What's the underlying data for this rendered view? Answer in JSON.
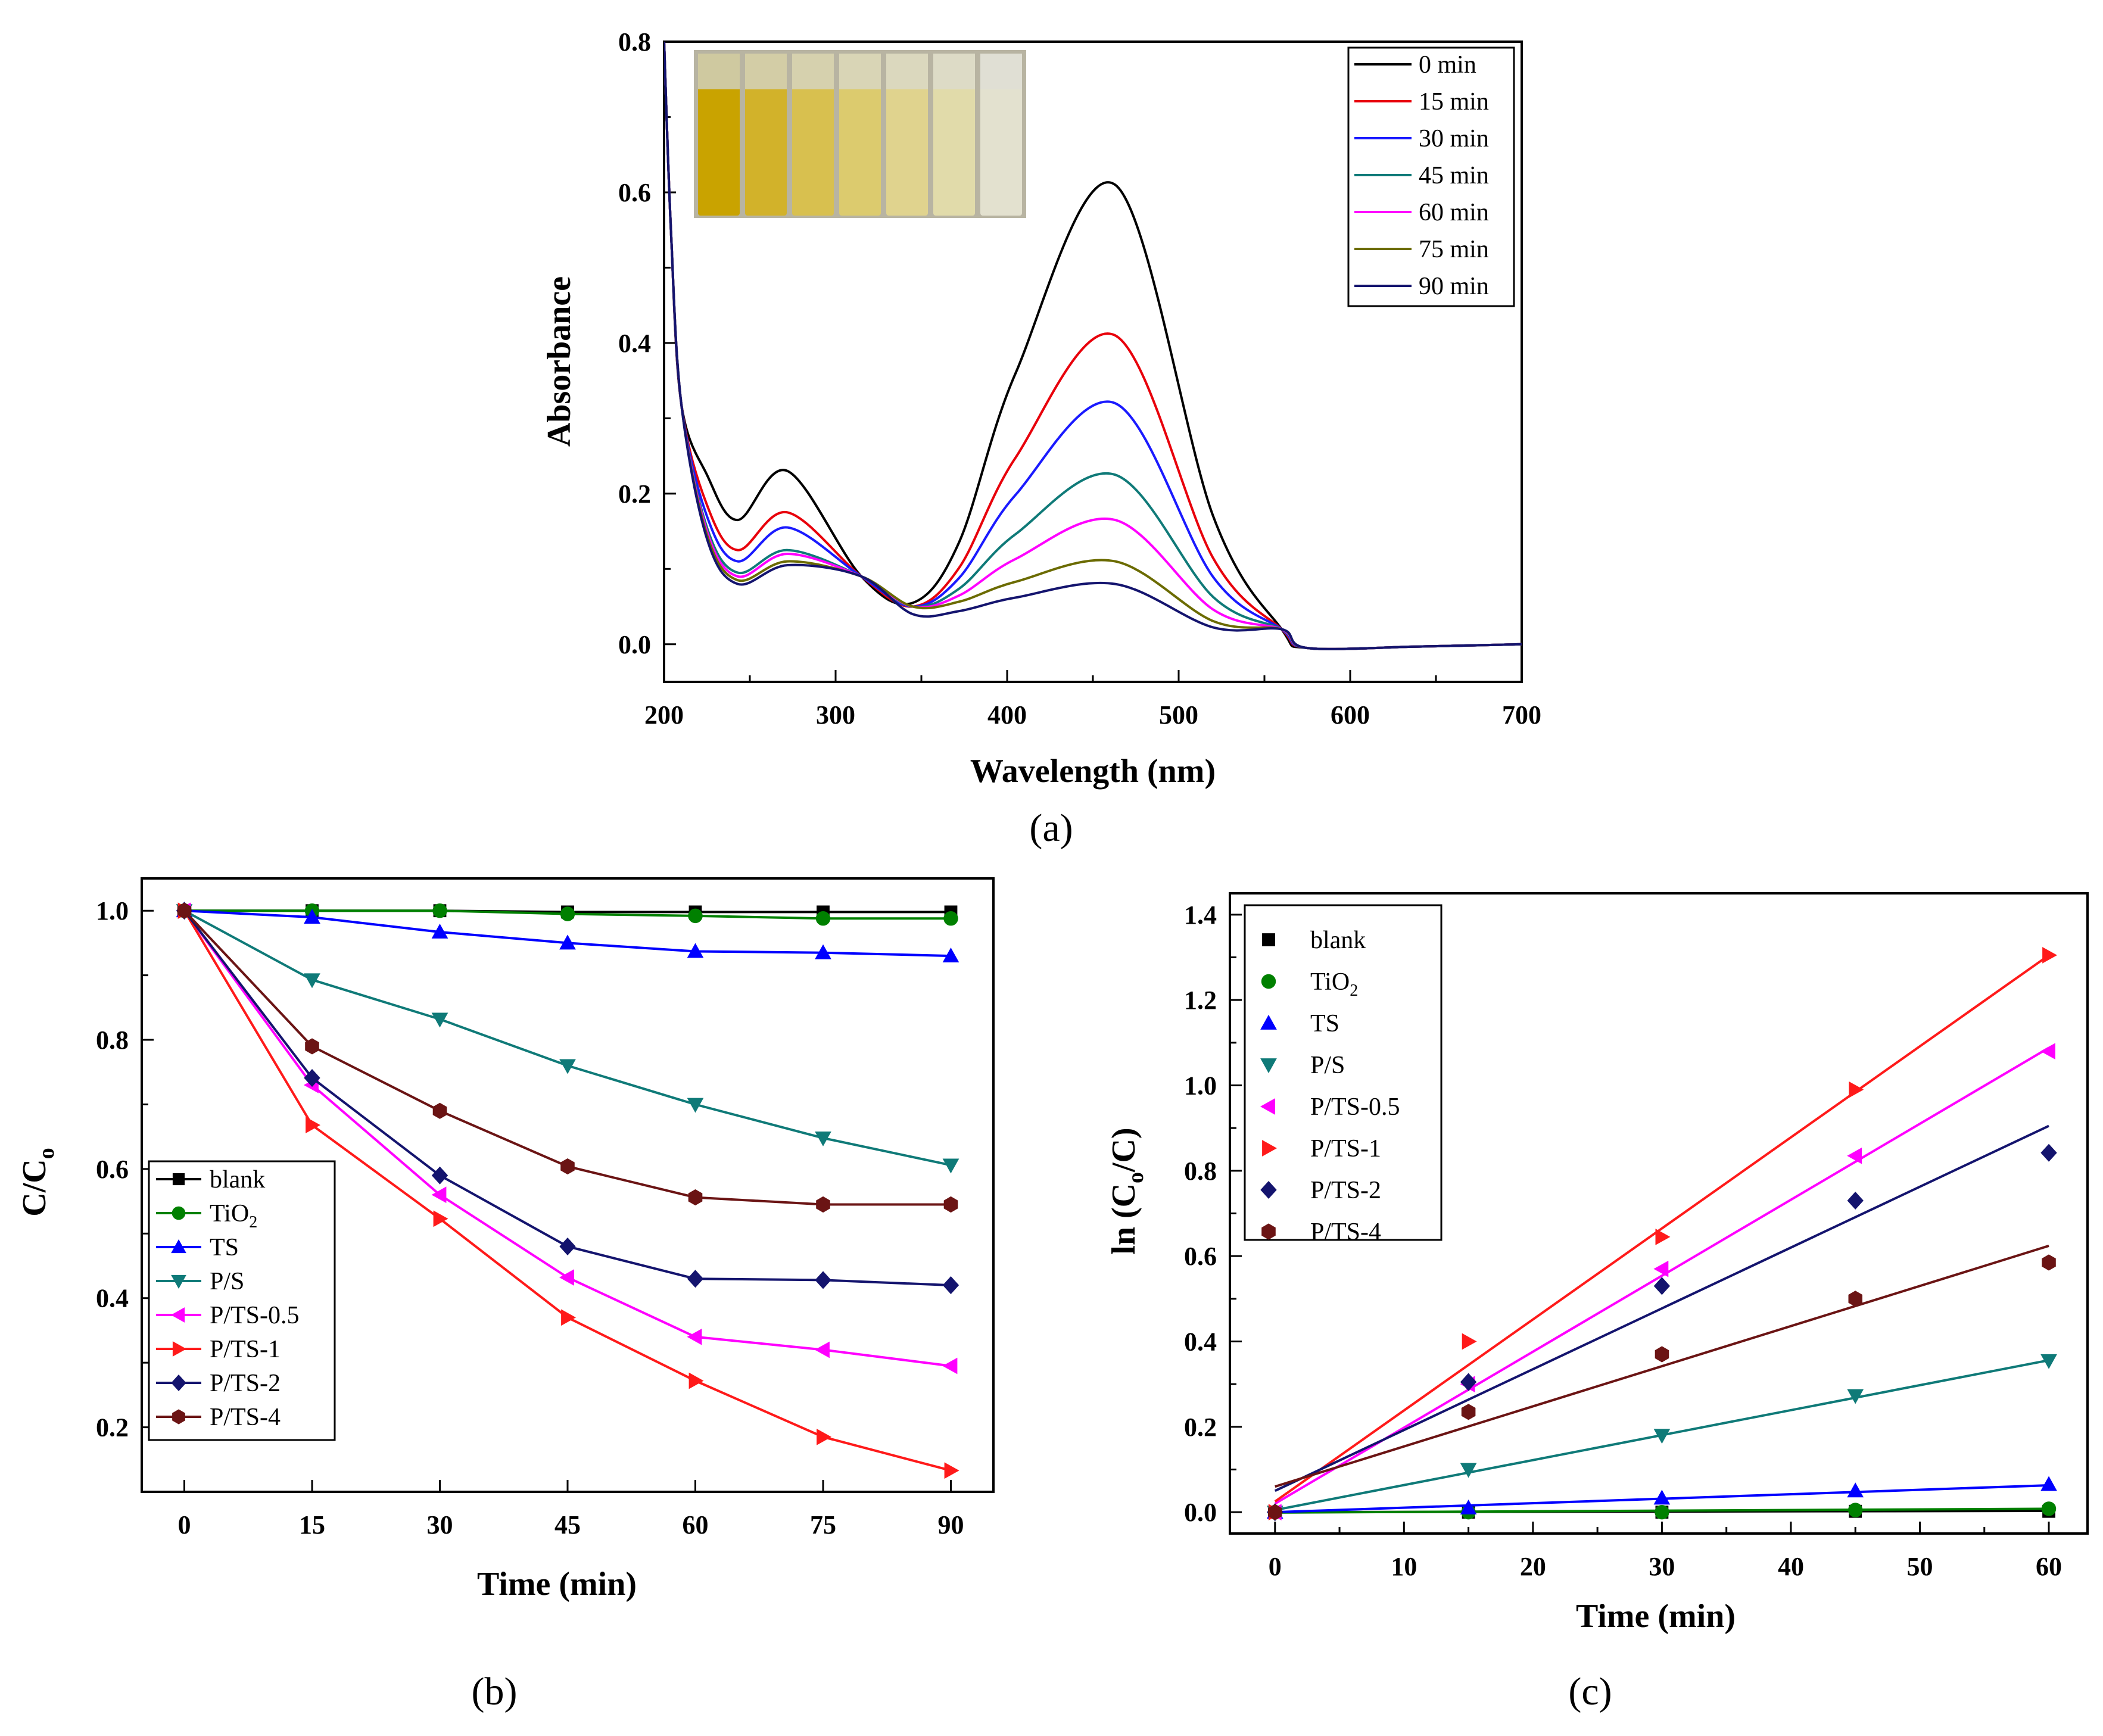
{
  "chart_data": [
    {
      "id": "a",
      "type": "line",
      "panel_label": "(a)",
      "xlabel": "Wavelength (nm)",
      "ylabel": "Absorbance",
      "xlim": [
        200,
        700
      ],
      "ylim": [
        -0.05,
        0.8
      ],
      "xticks": [
        200,
        300,
        400,
        500,
        600,
        700
      ],
      "yticks": [
        0.0,
        0.2,
        0.4,
        0.6,
        0.8
      ],
      "legend_position": "top-right",
      "inset": "photo of seven cuvettes fading from yellow to colourless",
      "series": [
        {
          "name": "0 min",
          "color": "#000000",
          "valley1": 0.165,
          "peak1": 0.23,
          "valley2": 0.055,
          "peak2": 0.61
        },
        {
          "name": "15 min",
          "color": "#e8000b",
          "valley1": 0.125,
          "peak1": 0.175,
          "valley2": 0.05,
          "peak2": 0.41
        },
        {
          "name": "30 min",
          "color": "#1a1aff",
          "valley1": 0.11,
          "peak1": 0.155,
          "valley2": 0.05,
          "peak2": 0.32
        },
        {
          "name": "45 min",
          "color": "#0f7a78",
          "valley1": 0.095,
          "peak1": 0.125,
          "valley2": 0.05,
          "peak2": 0.225
        },
        {
          "name": "60 min",
          "color": "#ff00ff",
          "valley1": 0.09,
          "peak1": 0.12,
          "valley2": 0.05,
          "peak2": 0.165
        },
        {
          "name": "75 min",
          "color": "#6b6b00",
          "valley1": 0.085,
          "peak1": 0.11,
          "valley2": 0.05,
          "peak2": 0.11
        },
        {
          "name": "90 min",
          "color": "#14146e",
          "valley1": 0.08,
          "peak1": 0.105,
          "valley2": 0.04,
          "peak2": 0.08
        }
      ]
    },
    {
      "id": "b",
      "type": "line",
      "panel_label": "(b)",
      "xlabel": "Time (min)",
      "ylabel": "C/C",
      "ylabel_sub": "o",
      "xlim": [
        -5,
        95
      ],
      "ylim": [
        0.1,
        1.05
      ],
      "xticks": [
        0,
        15,
        30,
        45,
        60,
        75,
        90
      ],
      "yticks": [
        0.2,
        0.4,
        0.6,
        0.8,
        1.0
      ],
      "legend_position": "bottom-left",
      "x": [
        0,
        15,
        30,
        45,
        60,
        75,
        90
      ],
      "series": [
        {
          "name": "blank",
          "sub": "",
          "color": "#000000",
          "marker": "square",
          "values": [
            1.0,
            1.0,
            1.0,
            0.998,
            0.998,
            0.998,
            0.998
          ]
        },
        {
          "name": "TiO",
          "sub": "2",
          "color": "#008000",
          "marker": "circle",
          "values": [
            1.0,
            1.0,
            1.0,
            0.995,
            0.992,
            0.988,
            0.988
          ]
        },
        {
          "name": "TS",
          "sub": "",
          "color": "#0000ff",
          "marker": "tri-up",
          "values": [
            1.0,
            0.99,
            0.967,
            0.95,
            0.937,
            0.935,
            0.93
          ]
        },
        {
          "name": "P/S",
          "sub": "",
          "color": "#0f7a78",
          "marker": "tri-down",
          "values": [
            1.0,
            0.893,
            0.832,
            0.76,
            0.7,
            0.648,
            0.606
          ]
        },
        {
          "name": "P/TS-0.5",
          "sub": "",
          "color": "#ff00ff",
          "marker": "tri-left",
          "values": [
            1.0,
            0.73,
            0.56,
            0.432,
            0.34,
            0.32,
            0.295
          ]
        },
        {
          "name": "P/TS-1",
          "sub": "",
          "color": "#ff1a1a",
          "marker": "tri-right",
          "values": [
            1.0,
            0.668,
            0.523,
            0.37,
            0.272,
            0.185,
            0.133
          ]
        },
        {
          "name": "P/TS-2",
          "sub": "",
          "color": "#14146e",
          "marker": "diamond",
          "values": [
            1.0,
            0.741,
            0.59,
            0.48,
            0.43,
            0.428,
            0.42
          ]
        },
        {
          "name": "P/TS-4",
          "sub": "",
          "color": "#6b1414",
          "marker": "hexagon",
          "values": [
            1.0,
            0.79,
            0.69,
            0.604,
            0.556,
            0.545,
            0.545
          ]
        }
      ]
    },
    {
      "id": "c",
      "type": "scatter",
      "panel_label": "(c)",
      "xlabel": "Time (min)",
      "ylabel": "ln (C",
      "ylabel_sub": "o",
      "ylabel_tail": "/C)",
      "xlim": [
        -3.5,
        63
      ],
      "ylim": [
        -0.05,
        1.45
      ],
      "xticks": [
        0,
        10,
        20,
        30,
        40,
        50,
        60
      ],
      "yticks": [
        0.0,
        0.2,
        0.4,
        0.6,
        0.8,
        1.0,
        1.2,
        1.4
      ],
      "legend_position": "top-left",
      "x": [
        0,
        15,
        30,
        45,
        60
      ],
      "series": [
        {
          "name": "blank",
          "sub": "",
          "color": "#000000",
          "marker": "square",
          "values": [
            0.0,
            0.0,
            0.0,
            0.002,
            0.002
          ],
          "fit": [
            0.0,
            5e-05
          ]
        },
        {
          "name": "TiO",
          "sub": "2",
          "color": "#008000",
          "marker": "circle",
          "values": [
            0.0,
            0.0,
            0.0,
            0.005,
            0.008
          ],
          "fit": [
            -0.001,
            0.00015
          ]
        },
        {
          "name": "TS",
          "sub": "",
          "color": "#0000ff",
          "marker": "tri-up",
          "values": [
            0.0,
            0.01,
            0.033,
            0.05,
            0.065
          ],
          "fit": [
            0.0,
            0.00105
          ]
        },
        {
          "name": "P/S",
          "sub": "",
          "color": "#0f7a78",
          "marker": "tri-down",
          "values": [
            0.0,
            0.1,
            0.18,
            0.273,
            0.355
          ],
          "fit": [
            0.005,
            0.00585
          ]
        },
        {
          "name": "P/TS-0.5",
          "sub": "",
          "color": "#ff00ff",
          "marker": "tri-left",
          "values": [
            0.0,
            0.3,
            0.57,
            0.835,
            1.08
          ],
          "fit": [
            0.02,
            0.0178
          ]
        },
        {
          "name": "P/TS-1",
          "sub": "",
          "color": "#ff1a1a",
          "marker": "tri-right",
          "values": [
            0.0,
            0.4,
            0.645,
            0.99,
            1.305
          ],
          "fit": [
            0.025,
            0.02133
          ]
        },
        {
          "name": "P/TS-2",
          "sub": "",
          "color": "#14146e",
          "marker": "diamond",
          "values": [
            0.0,
            0.305,
            0.53,
            0.73,
            0.842
          ],
          "fit": [
            0.05,
            0.01425
          ]
        },
        {
          "name": "P/TS-4",
          "sub": "",
          "color": "#6b1414",
          "marker": "hexagon",
          "values": [
            0.0,
            0.235,
            0.37,
            0.5,
            0.585
          ],
          "fit": [
            0.06,
            0.0094
          ]
        }
      ]
    }
  ]
}
